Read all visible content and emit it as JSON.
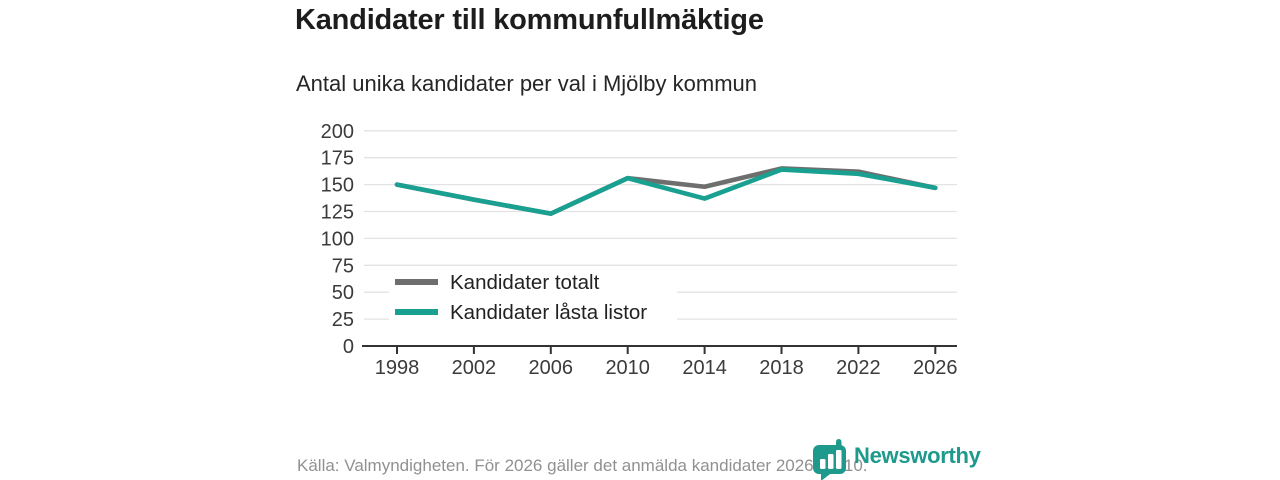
{
  "header": {
    "title": "Kandidater till kommunfullmäktige",
    "subtitle": "Antal unika kandidater per val i Mjölby kommun"
  },
  "chart_data": {
    "type": "line",
    "title": "Kandidater till kommunfullmäktige",
    "subtitle": "Antal unika kandidater per val i Mjölby kommun",
    "categories": [
      "1998",
      "2002",
      "2006",
      "2010",
      "2014",
      "2018",
      "2022",
      "2026"
    ],
    "series": [
      {
        "name": "Kandidater totalt",
        "color": "#6e6e6e",
        "values": [
          150,
          136,
          123,
          156,
          148,
          165,
          162,
          147
        ]
      },
      {
        "name": "Kandidater låsta listor",
        "color": "#19a091",
        "values": [
          150,
          136,
          123,
          156,
          137,
          164,
          160,
          147
        ]
      }
    ],
    "xlabel": "",
    "ylabel": "",
    "ylim": [
      0,
      200
    ],
    "yticks": [
      0,
      25,
      50,
      75,
      100,
      125,
      150,
      175,
      200
    ],
    "grid": true,
    "legend_position": "inside-left"
  },
  "footer": {
    "source": "Källa: Valmyndigheten. För 2026 gäller det anmälda kandidater 2026-04-10.",
    "brand": "Newsworthy"
  },
  "colors": {
    "accent_teal": "#19a091",
    "line_gray": "#6e6e6e",
    "grid": "#e3e3e3",
    "axis": "#333333",
    "tick_label": "#3b3b3b",
    "legend_text": "#222222",
    "brand_teal": "#1d9a8c"
  }
}
